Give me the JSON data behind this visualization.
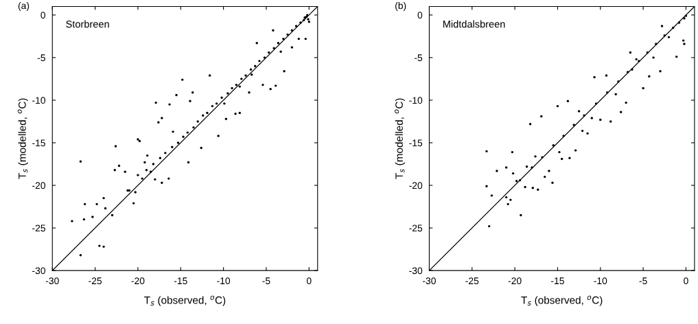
{
  "chart_data": [
    {
      "type": "scatter",
      "xlabel": "T$_{s}$ (observed, $^{o}$C)",
      "ylabel": "T$_{s}$ (modelled, $^{o}$C)",
      "annotations": [
        "(a)",
        "Storbreen"
      ],
      "xlim": [
        -30,
        1
      ],
      "ylim": [
        -30,
        1
      ],
      "xticks": [
        -30,
        -25,
        -20,
        -15,
        -10,
        -5,
        0
      ],
      "yticks": [
        -30,
        -25,
        -20,
        -15,
        -10,
        -5,
        0
      ],
      "grid": false,
      "legend": false,
      "marker": "circle",
      "series": [
        {
          "color": "#000000",
          "x": [
            -26.7,
            -27.7,
            -26.7,
            -24.5,
            -24,
            -26.2,
            -26.3,
            -25.3,
            -24.8,
            -24,
            -23.8,
            -23,
            -22.7,
            -22.6,
            -22.2,
            -21.5,
            -21,
            -20.5,
            -20,
            -20,
            -19.8,
            -19.2,
            -18.9,
            -18.5,
            -18,
            -17.9,
            -17.6,
            -17.2,
            -17.2,
            -16.3,
            -16.4,
            -15.9,
            -15.5,
            -14.8,
            -14.1,
            -13.9,
            -13.6,
            -12.6,
            -11.6,
            -10.6,
            -9.9,
            -9.7,
            -8.6,
            -8.1,
            -8.1,
            -7,
            -6.7,
            -6.1,
            -4.5,
            -5.4,
            -3.9,
            -2.9,
            -3.3,
            -1.2,
            -0.4,
            -4.2,
            -2,
            -21.2,
            -20.3,
            -19.5,
            -19,
            -18.2,
            -17.4,
            -16.8,
            -16,
            -15.3,
            -14.7,
            -14.2,
            -13.5,
            -13,
            -12.4,
            -11.9,
            -11.3,
            -10.8,
            -10.2,
            -9.5,
            -9,
            -8.5,
            -7.9,
            -7.4,
            -6.8,
            -6.3,
            -5.8,
            -5.2,
            -4.7,
            -4.1,
            -3.6,
            -3,
            -2.5,
            -2,
            -1.5,
            -1,
            -0.6,
            -0.3,
            -0.1,
            0,
            -0.2,
            -0.5
          ],
          "values": [
            -17.2,
            -24.2,
            -28.2,
            -27.1,
            -27.2,
            -22.2,
            -24,
            -23.7,
            -22.2,
            -21.5,
            -22.7,
            -23.5,
            -18.2,
            -15.4,
            -17.7,
            -18.4,
            -20.6,
            -22.1,
            -18.8,
            -14.6,
            -14.8,
            -17.3,
            -16.5,
            -18.4,
            -19.3,
            -10.3,
            -12.6,
            -12.1,
            -19.7,
            -10.5,
            -19.2,
            -13.7,
            -9.4,
            -7.6,
            -17.3,
            -10.1,
            -9.1,
            -15.6,
            -7.1,
            -14.2,
            -10.4,
            -12.2,
            -11.6,
            -8.4,
            -11.5,
            -9.1,
            -7,
            -3.3,
            -8.7,
            -8.2,
            -8.3,
            -6.6,
            -4.3,
            -2.8,
            -2.8,
            -1.8,
            -3.8,
            -20.6,
            -20.8,
            -19.2,
            -18.2,
            -17.5,
            -16.8,
            -16.2,
            -15.5,
            -15,
            -14.3,
            -13.8,
            -13.2,
            -12.5,
            -11.8,
            -11.5,
            -10.7,
            -10.4,
            -9.7,
            -9.2,
            -8.6,
            -8.2,
            -7.5,
            -7.1,
            -6.4,
            -6,
            -5.4,
            -5,
            -4.4,
            -3.9,
            -3.3,
            -2.8,
            -2.3,
            -1.8,
            -1.3,
            -0.9,
            -0.6,
            -0.2,
            -0.5,
            -0.8,
            0,
            -0.3
          ]
        },
        {
          "type": "line",
          "color": "#000000",
          "marker": "none",
          "x": [
            -30,
            1
          ],
          "values": [
            -30,
            1
          ]
        }
      ]
    },
    {
      "type": "scatter",
      "xlabel": "T$_{s}$ (observed, $^{o}$C)",
      "ylabel": "T$_{s}$ (modelled, $^{o}$C)",
      "annotations": [
        "(b)",
        "Midtdalsbreen"
      ],
      "xlim": [
        -30,
        1
      ],
      "ylim": [
        -30,
        1
      ],
      "xticks": [
        -30,
        -25,
        -20,
        -15,
        -10,
        -5,
        0
      ],
      "yticks": [
        -30,
        -25,
        -20,
        -15,
        -10,
        -5,
        0
      ],
      "grid": false,
      "legend": false,
      "marker": "circle",
      "series": [
        {
          "color": "#000000",
          "x": [
            -23.3,
            -23.3,
            -22.7,
            -23,
            -22.1,
            -21,
            -21,
            -20.8,
            -20.5,
            -20.3,
            -20.2,
            -19.8,
            -19.3,
            -18.8,
            -18.6,
            -18.2,
            -17.9,
            -17.6,
            -17.3,
            -16.9,
            -16.5,
            -16,
            -15.6,
            -15,
            -14.8,
            -14.5,
            -13.8,
            -13.6,
            -12.9,
            -12.5,
            -12.1,
            -11.5,
            -11,
            -10.7,
            -10,
            -9.3,
            -8.8,
            -8.2,
            -7.6,
            -7,
            -6.5,
            -6.3,
            -5.8,
            -5,
            -4.3,
            -3.8,
            -3,
            -2.8,
            -2,
            -0.3,
            -0.2,
            -1.1,
            -19.4,
            -18,
            -16.8,
            -15.5,
            -14.3,
            -13.1,
            -11.9,
            -10.5,
            -9.2,
            -7.9,
            -6.8,
            -5.5,
            -4.5,
            -3.5,
            -2.5,
            -1.5,
            -0.8,
            -0.2,
            0
          ],
          "values": [
            -16,
            -20.1,
            -21.2,
            -24.8,
            -18.3,
            -17.9,
            -21.4,
            -22.2,
            -21.7,
            -16.1,
            -18.6,
            -19.5,
            -23.5,
            -20.2,
            -17.8,
            -12.8,
            -20.3,
            -16.6,
            -20.5,
            -11.9,
            -19,
            -18.3,
            -19.7,
            -10.7,
            -16.1,
            -16.9,
            -10.1,
            -16.8,
            -15.9,
            -11.3,
            -13.6,
            -13.9,
            -12.1,
            -7.3,
            -12.3,
            -7.1,
            -12.5,
            -9.3,
            -11.4,
            -10.3,
            -4.4,
            -6.4,
            -5.2,
            -8.6,
            -7.2,
            -5,
            -6.6,
            -1.3,
            -2.6,
            -3,
            -3.4,
            -4.9,
            -19.4,
            -17.9,
            -16.7,
            -15.3,
            -14.2,
            -12.9,
            -11.8,
            -10.4,
            -9.1,
            -7.8,
            -6.7,
            -5.4,
            -4.4,
            -3.4,
            -2.4,
            -1.5,
            -0.9,
            -0.4,
            -0.1
          ]
        },
        {
          "type": "line",
          "color": "#000000",
          "marker": "none",
          "x": [
            -30,
            1
          ],
          "values": [
            -30,
            1
          ]
        }
      ]
    }
  ]
}
